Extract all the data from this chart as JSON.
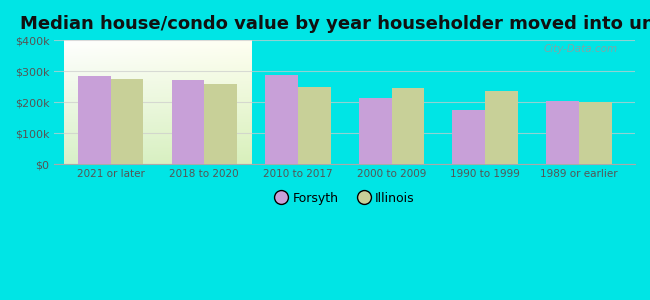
{
  "title": "Median house/condo value by year householder moved into unit",
  "categories": [
    "2021 or later",
    "2018 to 2020",
    "2010 to 2017",
    "2000 to 2009",
    "1990 to 1999",
    "1989 or earlier"
  ],
  "forsyth_values": [
    285000,
    270000,
    287000,
    215000,
    175000,
    205000
  ],
  "illinois_values": [
    275000,
    258000,
    248000,
    245000,
    235000,
    202000
  ],
  "forsyth_color": "#c8a0d8",
  "illinois_color": "#c8d098",
  "background_color": "#00e5e5",
  "ylim": [
    0,
    400000
  ],
  "yticks": [
    0,
    100000,
    200000,
    300000,
    400000
  ],
  "ytick_labels": [
    "$0",
    "$100k",
    "$200k",
    "$300k",
    "$400k"
  ],
  "bar_width": 0.35,
  "title_fontsize": 13,
  "watermark": "City-Data.com",
  "legend_forsyth": "Forsyth",
  "legend_illinois": "Illinois",
  "tick_color": "#555555",
  "grid_color": "#cccccc"
}
